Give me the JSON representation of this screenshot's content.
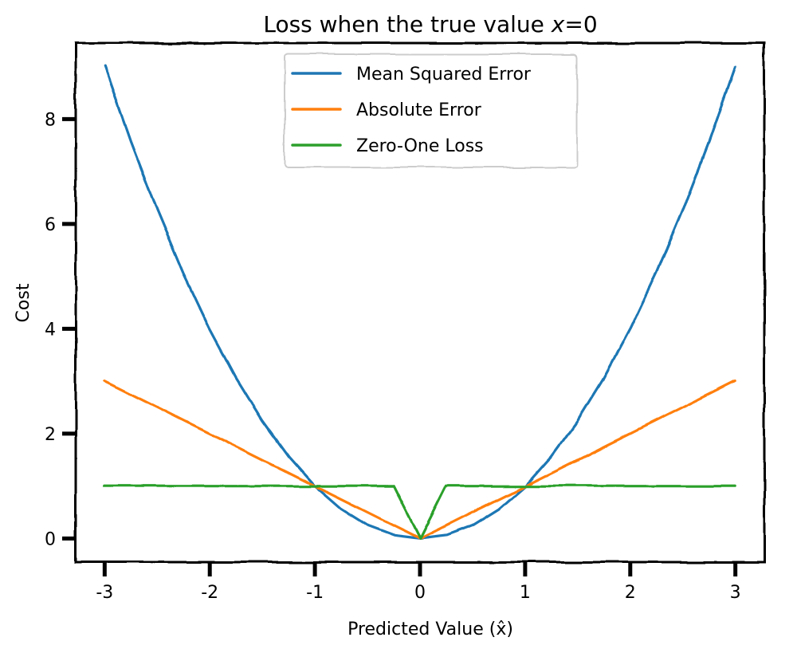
{
  "chart_data": {
    "type": "line",
    "title_prefix": "Loss when the true value ",
    "title_var": "x",
    "title_suffix": "=0",
    "xlabel": "Predicted Value (x̂)",
    "ylabel": "Cost",
    "xlim": [
      -3.2754,
      3.2754
    ],
    "ylim": [
      -0.45,
      9.45
    ],
    "xticks": [
      -3,
      -2,
      -1,
      0,
      1,
      2,
      3
    ],
    "yticks": [
      0,
      2,
      4,
      6,
      8
    ],
    "x": [
      -3,
      -2.75,
      -2.5,
      -2.25,
      -2,
      -1.75,
      -1.5,
      -1.25,
      -1,
      -0.75,
      -0.5,
      -0.25,
      0,
      0.25,
      0.5,
      0.75,
      1,
      1.25,
      1.5,
      1.75,
      2,
      2.25,
      2.5,
      2.75,
      3
    ],
    "series": [
      {
        "name": "Mean Squared Error",
        "color": "#1f77b4",
        "values": [
          9,
          7.5625,
          6.25,
          5.0625,
          4,
          3.0625,
          2.25,
          1.5625,
          1,
          0.5625,
          0.25,
          0.0625,
          0,
          0.0625,
          0.25,
          0.5625,
          1,
          1.5625,
          2.25,
          3.0625,
          4,
          5.0625,
          6.25,
          7.5625,
          9
        ]
      },
      {
        "name": "Absolute Error",
        "color": "#ff7f0e",
        "values": [
          3,
          2.75,
          2.5,
          2.25,
          2,
          1.75,
          1.5,
          1.25,
          1,
          0.75,
          0.5,
          0.25,
          0,
          0.25,
          0.5,
          0.75,
          1,
          1.25,
          1.5,
          1.75,
          2,
          2.25,
          2.5,
          2.75,
          3
        ]
      },
      {
        "name": "Zero-One Loss",
        "color": "#2ca02c",
        "x": [
          -3,
          -2.5,
          -2,
          -1.5,
          -1,
          -0.5,
          -0.25,
          0,
          0.25,
          0.5,
          1,
          1.5,
          2,
          2.5,
          3
        ],
        "values": [
          1,
          1,
          1,
          1,
          1,
          1,
          1,
          0,
          1,
          1,
          1,
          1,
          1,
          1,
          1
        ]
      }
    ],
    "legend_position": "upper-center",
    "grid": false
  }
}
